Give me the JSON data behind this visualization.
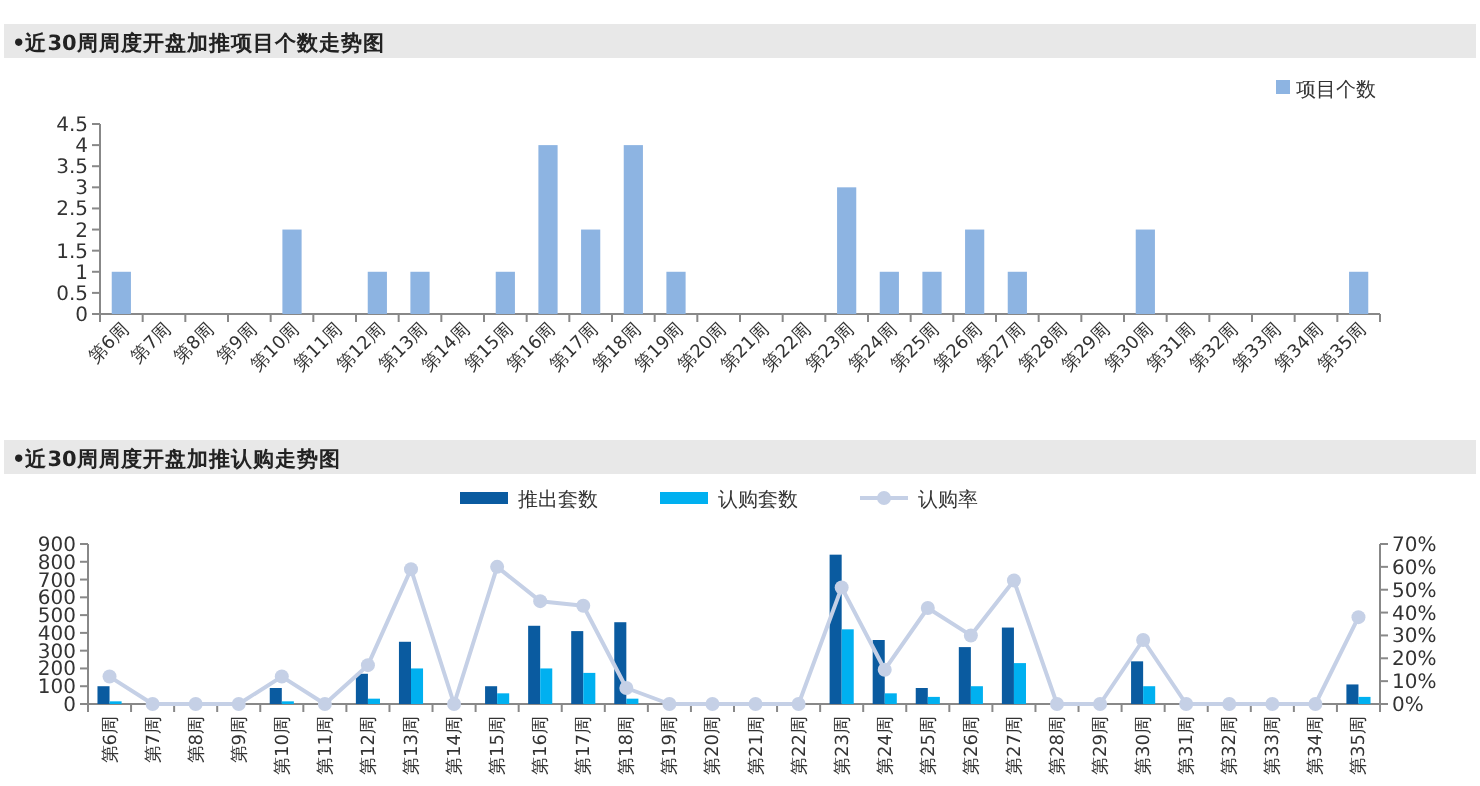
{
  "chart_data": [
    {
      "type": "bar",
      "title": "•近30周周度开盘加推项目个数走势图",
      "categories": [
        "第6周",
        "第7周",
        "第8周",
        "第9周",
        "第10周",
        "第11周",
        "第12周",
        "第13周",
        "第14周",
        "第15周",
        "第16周",
        "第17周",
        "第18周",
        "第19周",
        "第20周",
        "第21周",
        "第22周",
        "第23周",
        "第24周",
        "第25周",
        "第26周",
        "第27周",
        "第28周",
        "第29周",
        "第30周",
        "第31周",
        "第32周",
        "第33周",
        "第34周",
        "第35周"
      ],
      "series": [
        {
          "name": "项目个数",
          "color": "#8db4e2",
          "values": [
            1,
            0,
            0,
            0,
            2,
            0,
            1,
            1,
            0,
            1,
            4,
            2,
            4,
            1,
            0,
            0,
            0,
            3,
            1,
            1,
            2,
            1,
            0,
            0,
            2,
            0,
            0,
            0,
            0,
            1
          ]
        }
      ],
      "ylim": [
        0,
        4.5
      ],
      "yticks": [
        0,
        0.5,
        1,
        1.5,
        2,
        2.5,
        3,
        3.5,
        4,
        4.5
      ],
      "legend": "top right"
    },
    {
      "type": "bar",
      "title": "•近30周周度开盘加推认购走势图",
      "categories": [
        "第6周",
        "第7周",
        "第8周",
        "第9周",
        "第10周",
        "第11周",
        "第12周",
        "第13周",
        "第14周",
        "第15周",
        "第16周",
        "第17周",
        "第18周",
        "第19周",
        "第20周",
        "第21周",
        "第22周",
        "第23周",
        "第24周",
        "第25周",
        "第26周",
        "第27周",
        "第28周",
        "第29周",
        "第30周",
        "第31周",
        "第32周",
        "第33周",
        "第34周",
        "第35周"
      ],
      "series": [
        {
          "name": "推出套数",
          "color": "#0a5ba0",
          "values": [
            100,
            0,
            0,
            0,
            90,
            0,
            170,
            350,
            0,
            100,
            440,
            410,
            460,
            0,
            0,
            0,
            0,
            840,
            360,
            90,
            320,
            430,
            0,
            0,
            240,
            0,
            0,
            0,
            0,
            110
          ]
        },
        {
          "name": "认购套数",
          "color": "#00b0f0",
          "values": [
            15,
            0,
            0,
            0,
            15,
            0,
            30,
            200,
            0,
            60,
            200,
            175,
            30,
            0,
            0,
            0,
            0,
            420,
            60,
            40,
            100,
            230,
            0,
            0,
            100,
            0,
            0,
            0,
            0,
            40
          ]
        },
        {
          "name": "认购率",
          "type": "line",
          "axis": "y2",
          "marker": "circle",
          "color": "#c5d0e6",
          "values": [
            12,
            0,
            0,
            0,
            12,
            0,
            17,
            59,
            0,
            60,
            45,
            43,
            7,
            0,
            0,
            0,
            0,
            51,
            15,
            42,
            30,
            54,
            0,
            0,
            28,
            0,
            0,
            0,
            0,
            38
          ]
        }
      ],
      "ylim": [
        0,
        900
      ],
      "yticks": [
        0,
        100,
        200,
        300,
        400,
        500,
        600,
        700,
        800,
        900
      ],
      "y2lim": [
        0,
        70
      ],
      "y2ticks": [
        {
          "value": 0,
          "label": "0%"
        },
        {
          "value": 10,
          "label": "10%"
        },
        {
          "value": 20,
          "label": "20%"
        },
        {
          "value": 30,
          "label": "30%"
        },
        {
          "value": 40,
          "label": "40%"
        },
        {
          "value": 50,
          "label": "50%"
        },
        {
          "value": 60,
          "label": "60%"
        },
        {
          "value": 70,
          "label": "70%"
        }
      ],
      "legend": "top"
    }
  ]
}
